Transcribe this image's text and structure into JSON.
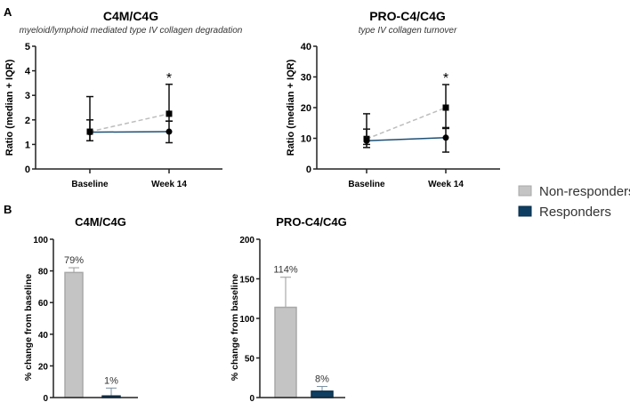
{
  "panel_labels": [
    "A",
    "B"
  ],
  "legend": [
    {
      "label": "Non-responders",
      "color": "#c4c4c4",
      "edge": "#a8a8a8"
    },
    {
      "label": "Responders",
      "color": "#0e3f63",
      "edge": "#0a2e4a"
    }
  ],
  "chart_data": [
    {
      "type": "line",
      "title": "C4M/C4G",
      "subtitle": "myeloid/lymphoid mediated type IV collagen degradation",
      "ylabel": "Ratio  (median + IQR)",
      "categories": [
        "Baseline",
        "Week 14"
      ],
      "ylim": [
        0,
        5
      ],
      "yticks": [
        0,
        1,
        2,
        3,
        4,
        5
      ],
      "series": [
        {
          "name": "Non-responders",
          "values": [
            1.52,
            2.25
          ],
          "upper": [
            2.0,
            3.45
          ],
          "lower": [
            1.15,
            1.95
          ],
          "marker": "square",
          "line": "dashed"
        },
        {
          "name": "Responders",
          "values": [
            1.5,
            1.52
          ],
          "upper": [
            2.95,
            1.95
          ],
          "lower": [
            1.15,
            1.07
          ],
          "marker": "circle",
          "line": "solid"
        }
      ],
      "annotations": [
        {
          "category": "Week 14",
          "text": "*",
          "y": 3.8
        }
      ]
    },
    {
      "type": "line",
      "title": "PRO-C4/C4G",
      "subtitle": "type IV collagen turnover",
      "ylabel": "Ratio  (median + IQR)",
      "categories": [
        "Baseline",
        "Week 14"
      ],
      "ylim": [
        0,
        40
      ],
      "yticks": [
        0,
        10,
        20,
        30,
        40
      ],
      "series": [
        {
          "name": "Non-responders",
          "values": [
            9.8,
            20
          ],
          "upper": [
            13,
            27.5
          ],
          "lower": [
            8,
            13.5
          ],
          "marker": "square",
          "line": "dashed"
        },
        {
          "name": "Responders",
          "values": [
            9.2,
            10.2
          ],
          "upper": [
            18,
            13.2
          ],
          "lower": [
            7,
            5.5
          ],
          "marker": "circle",
          "line": "solid"
        }
      ],
      "annotations": [
        {
          "category": "Week 14",
          "text": "*",
          "y": 30.5
        }
      ]
    },
    {
      "type": "bar",
      "title": "C4M/C4G",
      "ylabel": "% change from baseline",
      "categories": [
        "Non-responders",
        "Responders"
      ],
      "values": [
        79,
        1
      ],
      "errors_upper": [
        82,
        6
      ],
      "data_labels": [
        "79%",
        "1%"
      ],
      "ylim": [
        0,
        100
      ],
      "yticks": [
        0,
        20,
        40,
        60,
        80,
        100
      ]
    },
    {
      "type": "bar",
      "title": "PRO-C4/C4G",
      "ylabel": "% change from baseline",
      "categories": [
        "Non-responders",
        "Responders"
      ],
      "values": [
        114,
        8
      ],
      "errors_upper": [
        152,
        14
      ],
      "data_labels": [
        "114%",
        "8%"
      ],
      "ylim": [
        0,
        200
      ],
      "yticks": [
        0,
        50,
        100,
        150,
        200
      ]
    }
  ]
}
